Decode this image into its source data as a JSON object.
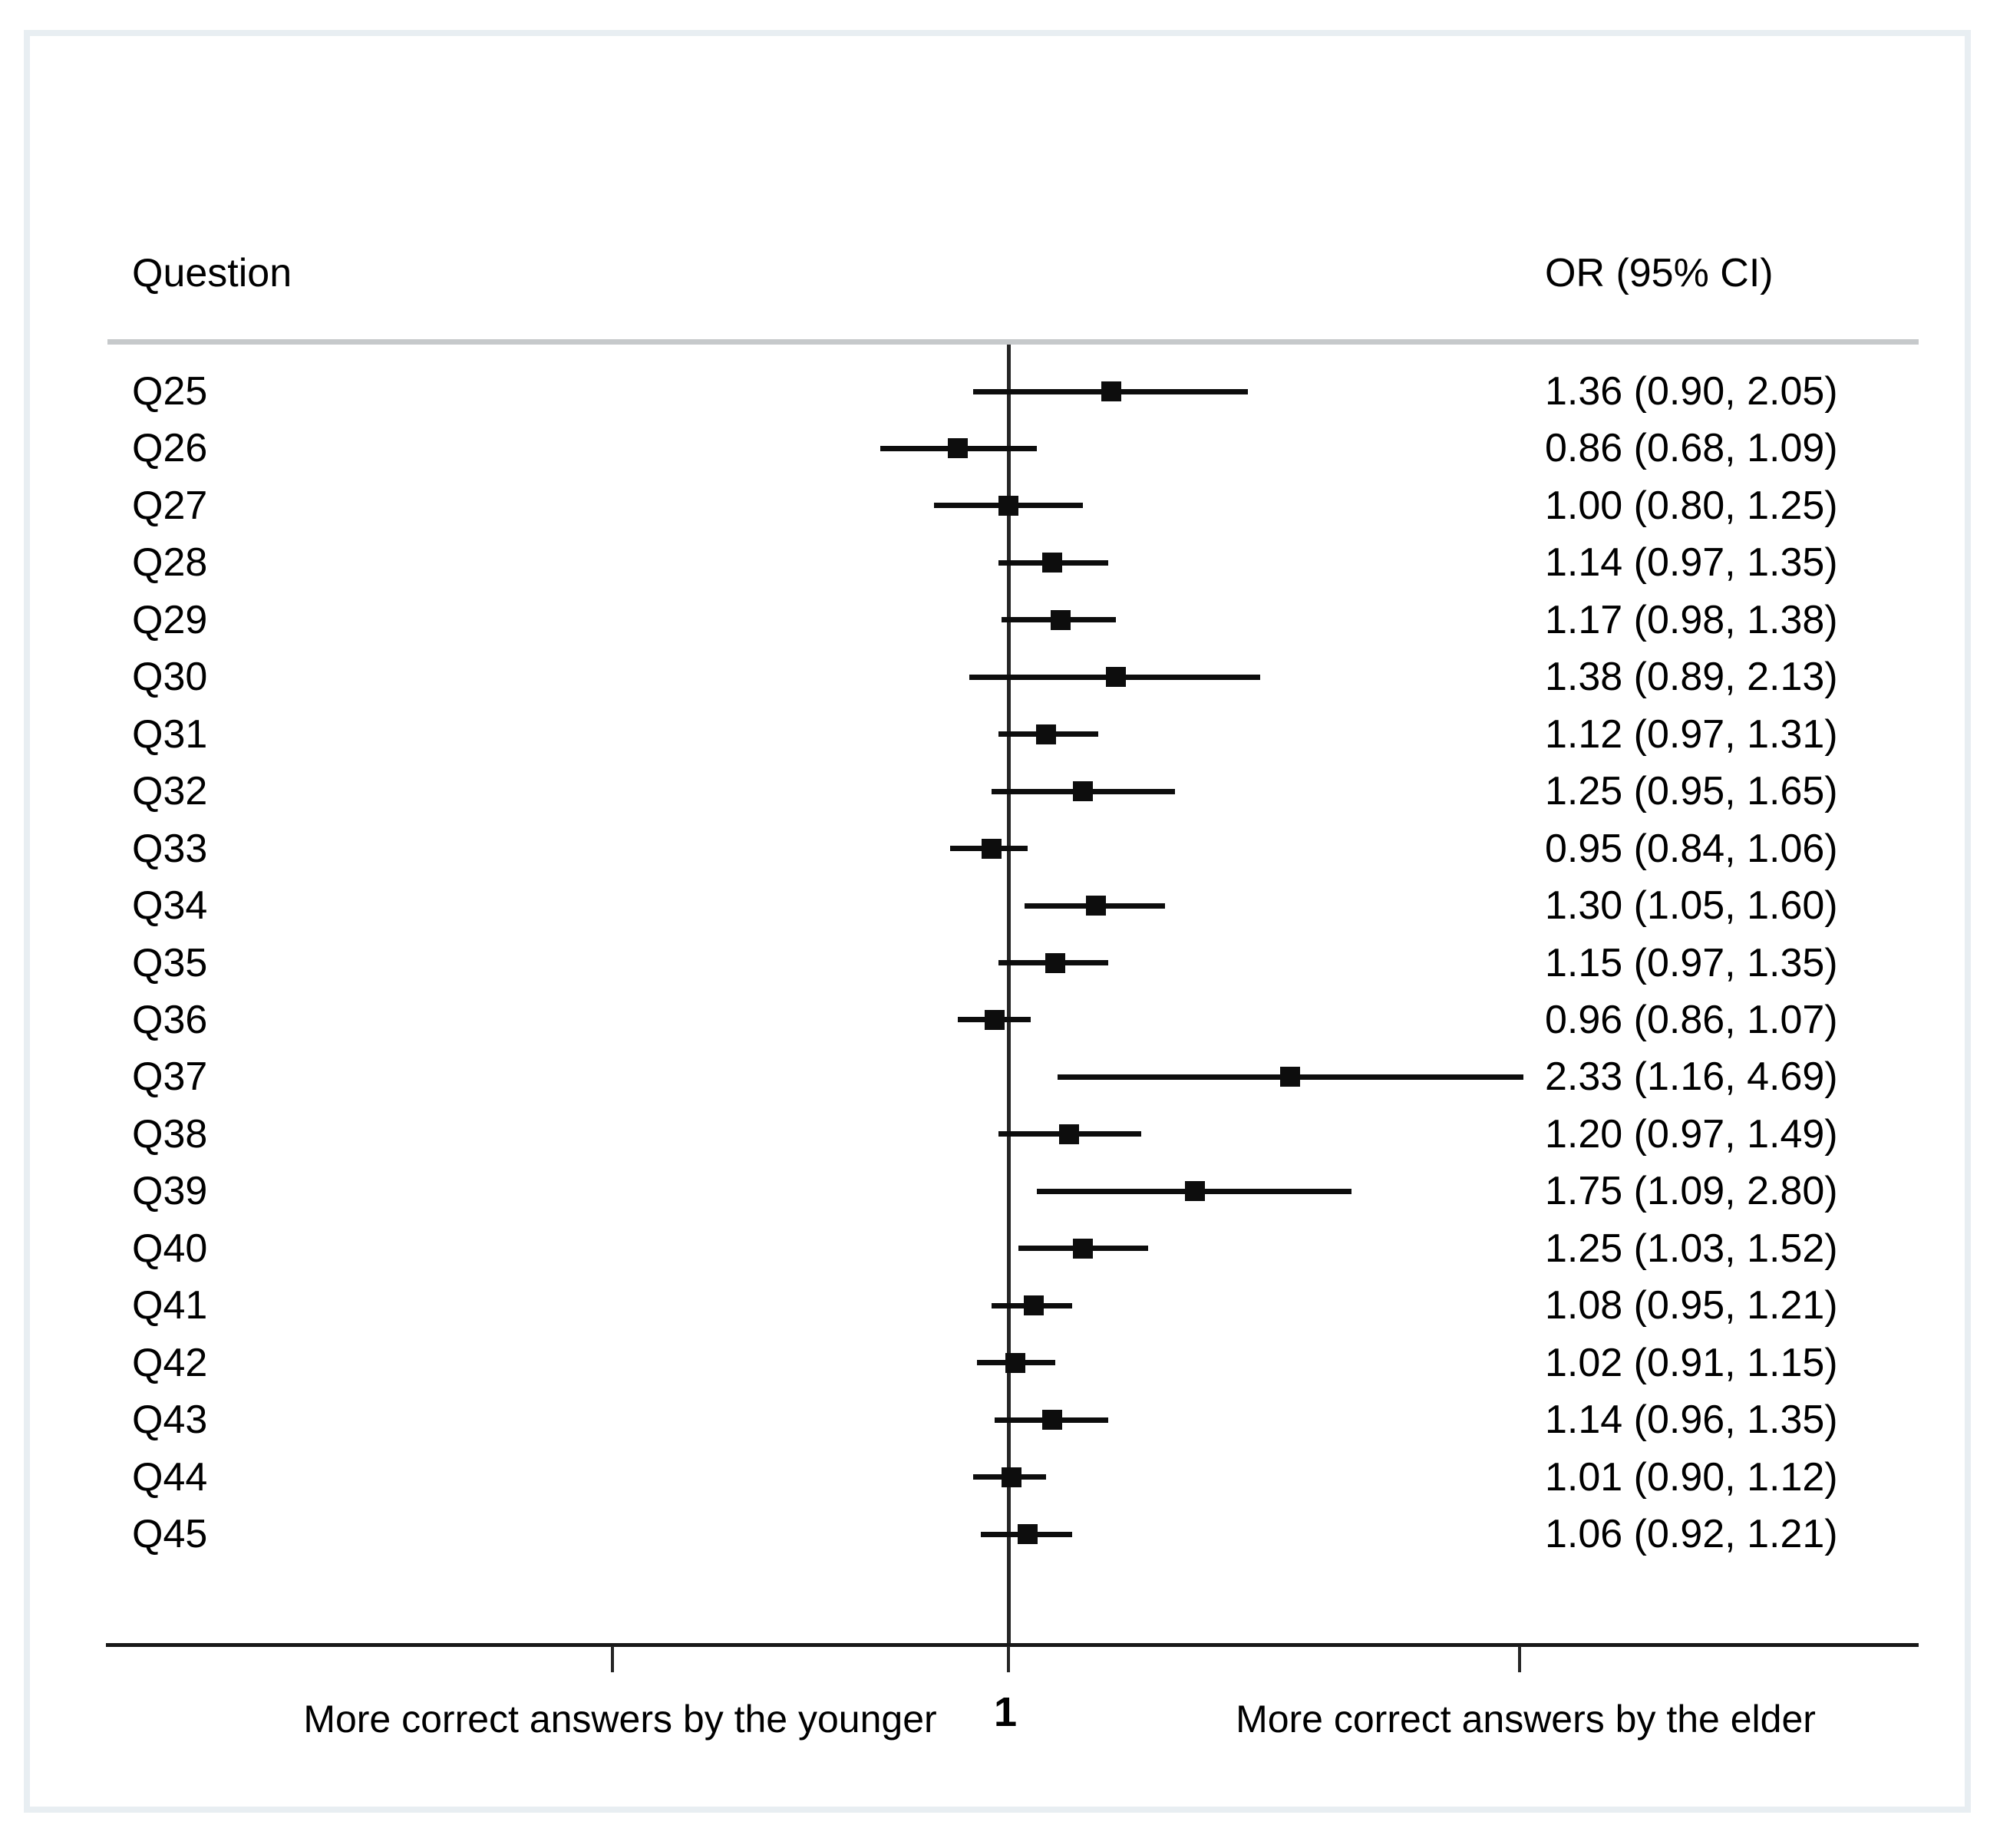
{
  "figure": {
    "left_header": "Question",
    "right_header": "OR (95% CI)",
    "axis": {
      "ref_label": "1",
      "left_direction_label": "More correct answers by the younger",
      "right_direction_label": "More correct answers by the elder"
    }
  },
  "chart_data": {
    "type": "forest",
    "title": "",
    "xlabel": "",
    "ylabel": "",
    "x_scale": "log10",
    "grid": false,
    "legend": "none",
    "columns": [
      "Question",
      "OR (95% CI)"
    ],
    "x_axis": {
      "reference_value": 1,
      "tick_values": [
        0.305,
        1,
        4.63
      ],
      "tick_labels": [
        "",
        "1",
        ""
      ],
      "xlim": [
        0.19,
        6.3
      ]
    },
    "rows": [
      {
        "question": "Q25",
        "or": 1.36,
        "ci_low": 0.9,
        "ci_high": 2.05,
        "or_ci_text": "1.36 (0.90, 2.05)"
      },
      {
        "question": "Q26",
        "or": 0.86,
        "ci_low": 0.68,
        "ci_high": 1.09,
        "or_ci_text": "0.86 (0.68, 1.09)"
      },
      {
        "question": "Q27",
        "or": 1.0,
        "ci_low": 0.8,
        "ci_high": 1.25,
        "or_ci_text": "1.00 (0.80, 1.25)"
      },
      {
        "question": "Q28",
        "or": 1.14,
        "ci_low": 0.97,
        "ci_high": 1.35,
        "or_ci_text": "1.14 (0.97, 1.35)"
      },
      {
        "question": "Q29",
        "or": 1.17,
        "ci_low": 0.98,
        "ci_high": 1.38,
        "or_ci_text": "1.17 (0.98, 1.38)"
      },
      {
        "question": "Q30",
        "or": 1.38,
        "ci_low": 0.89,
        "ci_high": 2.13,
        "or_ci_text": "1.38 (0.89, 2.13)"
      },
      {
        "question": "Q31",
        "or": 1.12,
        "ci_low": 0.97,
        "ci_high": 1.31,
        "or_ci_text": "1.12 (0.97, 1.31)"
      },
      {
        "question": "Q32",
        "or": 1.25,
        "ci_low": 0.95,
        "ci_high": 1.65,
        "or_ci_text": "1.25 (0.95, 1.65)"
      },
      {
        "question": "Q33",
        "or": 0.95,
        "ci_low": 0.84,
        "ci_high": 1.06,
        "or_ci_text": "0.95 (0.84, 1.06)"
      },
      {
        "question": "Q34",
        "or": 1.3,
        "ci_low": 1.05,
        "ci_high": 1.6,
        "or_ci_text": "1.30 (1.05, 1.60)"
      },
      {
        "question": "Q35",
        "or": 1.15,
        "ci_low": 0.97,
        "ci_high": 1.35,
        "or_ci_text": "1.15 (0.97, 1.35)"
      },
      {
        "question": "Q36",
        "or": 0.96,
        "ci_low": 0.86,
        "ci_high": 1.07,
        "or_ci_text": "0.96 (0.86, 1.07)"
      },
      {
        "question": "Q37",
        "or": 2.33,
        "ci_low": 1.16,
        "ci_high": 4.69,
        "or_ci_text": "2.33 (1.16, 4.69)"
      },
      {
        "question": "Q38",
        "or": 1.2,
        "ci_low": 0.97,
        "ci_high": 1.49,
        "or_ci_text": "1.20 (0.97, 1.49)"
      },
      {
        "question": "Q39",
        "or": 1.75,
        "ci_low": 1.09,
        "ci_high": 2.8,
        "or_ci_text": "1.75 (1.09, 2.80)"
      },
      {
        "question": "Q40",
        "or": 1.25,
        "ci_low": 1.03,
        "ci_high": 1.52,
        "or_ci_text": "1.25 (1.03, 1.52)"
      },
      {
        "question": "Q41",
        "or": 1.08,
        "ci_low": 0.95,
        "ci_high": 1.21,
        "or_ci_text": "1.08 (0.95, 1.21)"
      },
      {
        "question": "Q42",
        "or": 1.02,
        "ci_low": 0.91,
        "ci_high": 1.15,
        "or_ci_text": "1.02 (0.91, 1.15)"
      },
      {
        "question": "Q43",
        "or": 1.14,
        "ci_low": 0.96,
        "ci_high": 1.35,
        "or_ci_text": "1.14 (0.96, 1.35)"
      },
      {
        "question": "Q44",
        "or": 1.01,
        "ci_low": 0.9,
        "ci_high": 1.12,
        "or_ci_text": "1.01 (0.90, 1.12)"
      },
      {
        "question": "Q45",
        "or": 1.06,
        "ci_low": 0.92,
        "ci_high": 1.21,
        "or_ci_text": "1.06 (0.92, 1.21)"
      }
    ]
  }
}
